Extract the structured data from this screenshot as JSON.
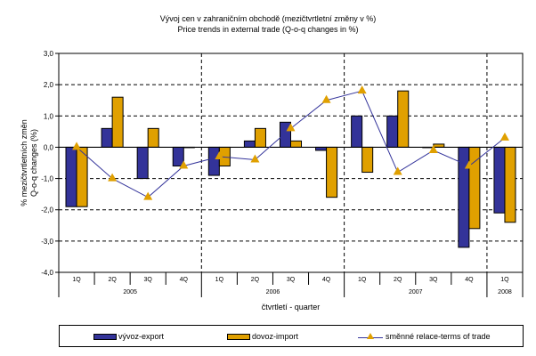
{
  "chart_data": {
    "type": "bar",
    "title": "Vývoj cen v zahraničním obchodě (mezičtvrtletní změny v %)",
    "subtitle": "Price trends in external trade (Q-o-q changes in %)",
    "ylabel_line1": "% mezičtvrtletních změn",
    "ylabel_line2": "Q-o-q changes (%)",
    "xlabel": "čtvrtletí - quarter",
    "ylim": [
      -4.0,
      3.0
    ],
    "yticks": [
      3.0,
      2.0,
      1.0,
      0.0,
      -1.0,
      -2.0,
      -3.0,
      -4.0
    ],
    "ytick_labels": [
      "3,0",
      "2,0",
      "1,0",
      "0,0",
      "-1,0",
      "-2,0",
      "-3,0",
      "-4,0"
    ],
    "grid": true,
    "legend_position": "bottom",
    "categories": [
      "1Q",
      "2Q",
      "3Q",
      "4Q",
      "1Q",
      "2Q",
      "3Q",
      "4Q",
      "1Q",
      "2Q",
      "3Q",
      "4Q",
      "1Q"
    ],
    "year_groups": [
      {
        "label": "2005",
        "count": 4
      },
      {
        "label": "2006",
        "count": 4
      },
      {
        "label": "2007",
        "count": 4
      },
      {
        "label": "2008",
        "count": 1
      }
    ],
    "series": [
      {
        "name": "vývoz-export",
        "kind": "bar",
        "color": "#333399",
        "values": [
          -1.9,
          0.6,
          -1.0,
          -0.6,
          -0.9,
          0.2,
          0.8,
          -0.1,
          1.0,
          1.0,
          0.0,
          -3.2,
          -2.1
        ]
      },
      {
        "name": "dovoz-import",
        "kind": "bar",
        "color": "#e0a000",
        "values": [
          -1.9,
          1.6,
          0.6,
          0.0,
          -0.6,
          0.6,
          0.2,
          -1.6,
          -0.8,
          1.8,
          0.1,
          -2.6,
          -2.4
        ]
      },
      {
        "name": "směnné relace-terms of trade",
        "kind": "line",
        "color": "#33339a",
        "marker_color": "#e0a000",
        "values": [
          0.0,
          -1.0,
          -1.6,
          -0.6,
          -0.3,
          -0.4,
          0.6,
          1.5,
          1.8,
          -0.8,
          -0.1,
          -0.6,
          0.3
        ]
      }
    ]
  }
}
